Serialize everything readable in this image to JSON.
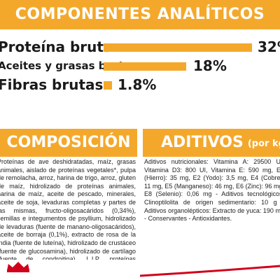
{
  "analytics": {
    "title": "COMPONENTES ANALÍTICOS",
    "rows": [
      {
        "label": "Proteína bruta",
        "value": "32%",
        "percent": 32
      },
      {
        "label": "Aceites y grasas brutos",
        "value": "18%",
        "percent": 18
      },
      {
        "label": "Fibras brutas",
        "value": "1.8%",
        "percent": 1.8
      }
    ]
  },
  "composition": {
    "title": "COMPOSICIÓN",
    "text": "Proteínas de ave deshidratadas, maíz, grasas animales, aislado de proteínas vegetales*, pulpa de remolacha, arroz, harina de trigo, arroz, gluten de maíz, hidrolizado de proteínas animales, harina de maíz, aceite de pescado, minerales, aceite de soja, levaduras completas y partes de las mismas, fructo-oligosacáridos (0,34%), semillas e integumentos de psyllium, hidrolizado de levaduras (fuente de manano-oligosacáridos), aceite de borraja (0,1%), extracto de rosa de la India (fuente de luteína), hidrolizado de crustáceo (fuente de glucosamina), hidrolizado de cartílago (fuente de condroitina). L.I.P. proteínas seleccionadas por su elevada digestibilidad."
  },
  "additives": {
    "title": "ADITIVOS",
    "unit": "(por kg)",
    "text": "Aditivos nutricionales: Vitamina A: 29500 UI, Vitamina D3: 800 UI, Vitamina E: 590 mg, E1 (Hierro): 35 mg, E2 (Yodo): 3,5 mg, E4 (Cobre): 11 mg, E5 (Manganeso): 46 mg, E6 (Zinc): 96 mg, E8 (Selenio): 0,06 mg - Aditivos tecnológicos: Clinoptilolita de origen sedimentario: 10 g - Aditivos organolépticos: Extracto de yuca: 190 mg - Conservantes - Antioxidantes."
  },
  "colors": {
    "accent": "#f4a82b",
    "brand_red": "#d0021b"
  }
}
